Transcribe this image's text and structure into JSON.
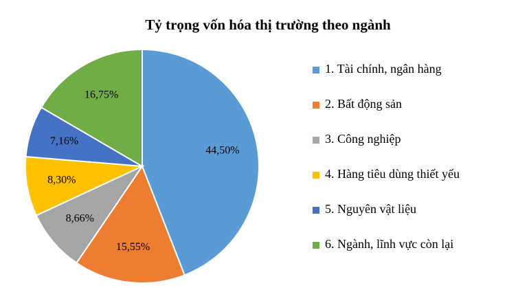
{
  "chart_data": {
    "type": "pie",
    "title": "Tỷ trọng vốn hóa thị trường theo ngành",
    "categories": [
      "1. Tài chính, ngân hàng",
      "2. Bất động sản",
      "3. Công nghiệp",
      "4. Hàng tiêu dùng thiết yếu",
      "5. Nguyên vật liệu",
      "6. Ngành, lĩnh vực còn lại"
    ],
    "values": [
      44.5,
      15.55,
      8.66,
      8.3,
      7.16,
      16.75
    ],
    "value_labels": [
      "44,50%",
      "15,55%",
      "8,66%",
      "8,30%",
      "7,16%",
      "16,75%"
    ],
    "colors": [
      "#5b9bd5",
      "#ed7d31",
      "#a5a5a5",
      "#ffc000",
      "#4472c4",
      "#70ad47"
    ],
    "legend": "right"
  }
}
